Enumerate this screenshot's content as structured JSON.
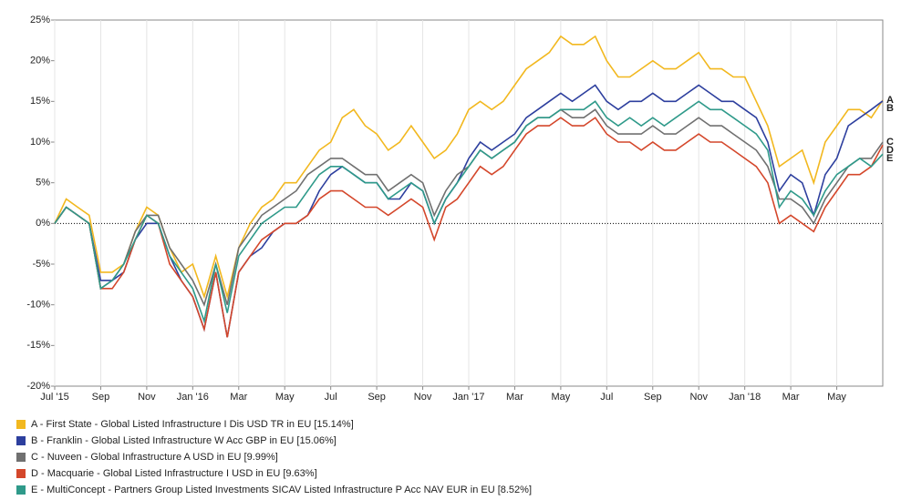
{
  "chart_data": {
    "type": "line",
    "categories": [
      "Jul '15",
      null,
      null,
      null,
      "Sep",
      null,
      null,
      null,
      "Nov",
      null,
      null,
      null,
      "Jan '16",
      null,
      null,
      null,
      "Mar",
      null,
      null,
      null,
      "May",
      null,
      null,
      null,
      "Jul",
      null,
      null,
      null,
      "Sep",
      null,
      null,
      null,
      "Nov",
      null,
      null,
      null,
      "Jan '17",
      null,
      null,
      null,
      "Mar",
      null,
      null,
      null,
      "May",
      null,
      null,
      null,
      "Jul",
      null,
      null,
      null,
      "Sep",
      null,
      null,
      null,
      "Nov",
      null,
      null,
      null,
      "Jan '18",
      null,
      null,
      null,
      "Mar",
      null,
      null,
      null,
      "May",
      null,
      null,
      null,
      null
    ],
    "ylim": [
      -20,
      25
    ],
    "yticks": [
      {
        "value": -20,
        "label": "-20%"
      },
      {
        "value": -15,
        "label": "-15%"
      },
      {
        "value": -10,
        "label": "-10%"
      },
      {
        "value": -5,
        "label": "-5%"
      },
      {
        "value": 0,
        "label": "0%"
      },
      {
        "value": 5,
        "label": "5%"
      },
      {
        "value": 10,
        "label": "10%"
      },
      {
        "value": 15,
        "label": "15%"
      },
      {
        "value": 20,
        "label": "20%"
      },
      {
        "value": 25,
        "label": "25%"
      }
    ],
    "grid": true,
    "zero_line": true,
    "legend": "bottom",
    "series": [
      {
        "name": "A - First State - Global Listed Infrastructure I Dis USD TR in EU [15.14%]",
        "end_label": "A",
        "color": "#f2b81f",
        "values": [
          0,
          3,
          2,
          1,
          -6,
          -6,
          -5,
          -1,
          2,
          1,
          -3,
          -6,
          -5,
          -9,
          -4,
          -9,
          -3,
          0,
          2,
          3,
          5,
          5,
          7,
          9,
          10,
          13,
          14,
          12,
          11,
          9,
          10,
          12,
          10,
          8,
          9,
          11,
          14,
          15,
          14,
          15,
          17,
          19,
          20,
          21,
          23,
          22,
          22,
          23,
          20,
          18,
          18,
          19,
          20,
          19,
          19,
          20,
          21,
          19,
          19,
          18,
          18,
          15,
          12,
          7,
          8,
          9,
          5,
          10,
          12,
          14,
          14,
          13,
          15.14
        ]
      },
      {
        "name": "B - Franklin - Global Listed Infrastructure W Acc GBP in EU [15.06%]",
        "end_label": "B",
        "color": "#2d3f9e",
        "values": [
          0,
          2,
          1,
          0,
          -7,
          -7,
          -6,
          -2,
          0,
          0,
          -4,
          -7,
          -9,
          -13,
          -6,
          -14,
          -6,
          -4,
          -3,
          -1,
          0,
          0,
          1,
          4,
          6,
          7,
          6,
          5,
          5,
          3,
          3,
          5,
          4,
          0,
          3,
          5,
          8,
          10,
          9,
          10,
          11,
          13,
          14,
          15,
          16,
          15,
          16,
          17,
          15,
          14,
          15,
          15,
          16,
          15,
          15,
          16,
          17,
          16,
          15,
          15,
          14,
          13,
          10,
          4,
          6,
          5,
          1,
          6,
          8,
          12,
          13,
          14,
          15.06
        ]
      },
      {
        "name": "C - Nuveen - Global Infrastructure A USD in EU [9.99%]",
        "end_label": "C",
        "color": "#707070",
        "values": [
          0,
          2,
          1,
          0,
          -8,
          -7,
          -5,
          -1,
          1,
          1,
          -3,
          -5,
          -7,
          -10,
          -5,
          -10,
          -3,
          -1,
          1,
          2,
          3,
          4,
          6,
          7,
          8,
          8,
          7,
          6,
          6,
          4,
          5,
          6,
          5,
          1,
          4,
          6,
          7,
          9,
          8,
          9,
          10,
          12,
          13,
          13,
          14,
          13,
          13,
          14,
          12,
          11,
          11,
          11,
          12,
          11,
          11,
          12,
          13,
          12,
          12,
          11,
          10,
          9,
          7,
          3,
          3,
          2,
          0,
          3,
          5,
          7,
          8,
          8,
          9.99
        ]
      },
      {
        "name": "D - Macquarie - Global Listed Infrastructure I USD in EU [9.63%]",
        "end_label": "D",
        "color": "#d4472b",
        "values": [
          0,
          2,
          1,
          0,
          -8,
          -8,
          -6,
          -2,
          1,
          0,
          -5,
          -7,
          -9,
          -13,
          -6,
          -14,
          -6,
          -4,
          -2,
          -1,
          0,
          0,
          1,
          3,
          4,
          4,
          3,
          2,
          2,
          1,
          2,
          3,
          2,
          -2,
          2,
          3,
          5,
          7,
          6,
          7,
          9,
          11,
          12,
          12,
          13,
          12,
          12,
          13,
          11,
          10,
          10,
          9,
          10,
          9,
          9,
          10,
          11,
          10,
          10,
          9,
          8,
          7,
          5,
          0,
          1,
          0,
          -1,
          2,
          4,
          6,
          6,
          7,
          9.63
        ]
      },
      {
        "name": "E - MultiConcept - Partners Group Listed Investments SICAV Listed Infrastructure P Acc NAV EUR in EU [8.52%]",
        "end_label": "E",
        "color": "#2f9a8a",
        "values": [
          0,
          2,
          1,
          0,
          -8,
          -7,
          -5,
          -2,
          1,
          0,
          -4,
          -6,
          -8,
          -12,
          -5,
          -11,
          -4,
          -2,
          0,
          1,
          2,
          2,
          4,
          6,
          7,
          7,
          6,
          5,
          5,
          3,
          4,
          5,
          4,
          0,
          3,
          5,
          7,
          9,
          8,
          9,
          10,
          12,
          13,
          13,
          14,
          14,
          14,
          15,
          13,
          12,
          13,
          12,
          13,
          12,
          13,
          14,
          15,
          14,
          14,
          13,
          12,
          11,
          9,
          2,
          4,
          3,
          1,
          4,
          6,
          7,
          8,
          7,
          8.52
        ]
      }
    ]
  }
}
